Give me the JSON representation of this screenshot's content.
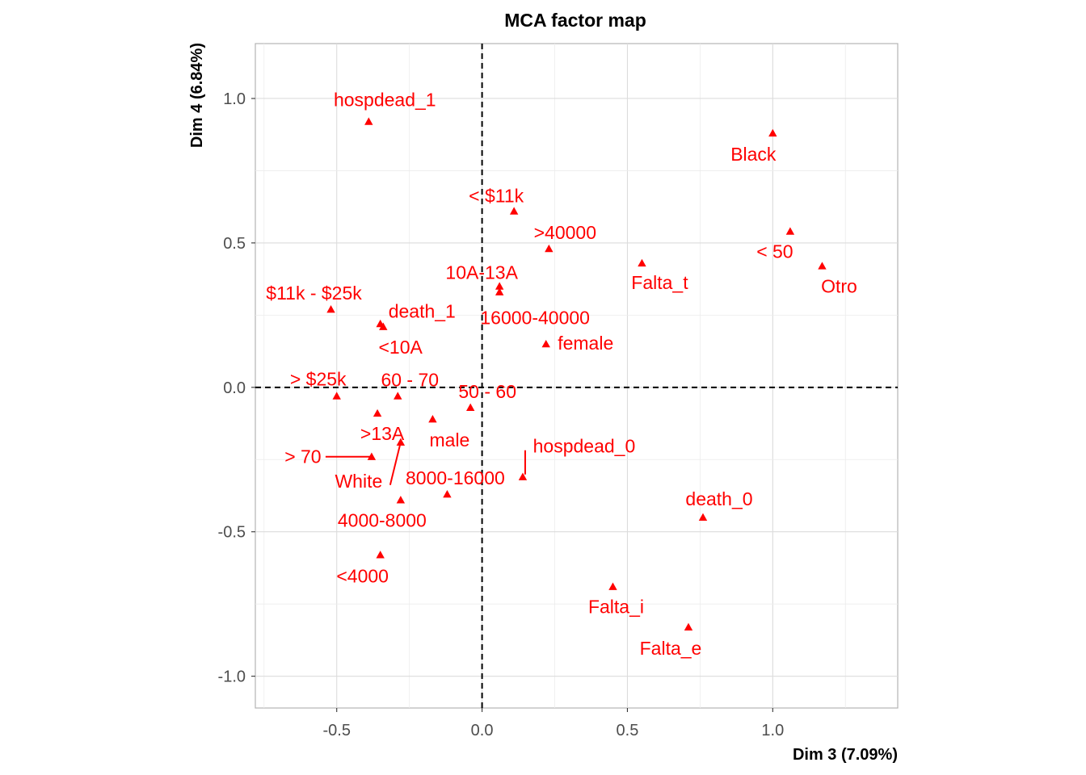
{
  "chart_data": {
    "type": "scatter",
    "title": "MCA factor map",
    "xlabel": "Dim 3 (7.09%)",
    "ylabel": "Dim 4 (6.84%)",
    "xlim": [
      -0.78,
      1.43
    ],
    "ylim": [
      -1.11,
      1.19
    ],
    "xticks": [
      -0.5,
      0.0,
      0.5,
      1.0
    ],
    "yticks": [
      -1.0,
      -0.5,
      0.0,
      0.5,
      1.0
    ],
    "xtick_labels": [
      "-0.5",
      "0.0",
      "0.5",
      "1.0"
    ],
    "ytick_labels": [
      "-1.0",
      "-0.5",
      "0.0",
      "0.5",
      "1.0"
    ],
    "grid": true,
    "reference_lines": {
      "x": 0,
      "y": 0,
      "style": "dashed"
    },
    "point_color": "#ff0000",
    "marker": "triangle",
    "points": [
      {
        "label": "hospdead_1",
        "x": -0.39,
        "y": 0.92
      },
      {
        "label": "Black",
        "x": 1.0,
        "y": 0.88
      },
      {
        "label": "< $11k",
        "x": 0.11,
        "y": 0.61
      },
      {
        "label": ">40000",
        "x": 0.23,
        "y": 0.48
      },
      {
        "label": "< 50",
        "x": 1.06,
        "y": 0.54
      },
      {
        "label": "Otro",
        "x": 1.17,
        "y": 0.42
      },
      {
        "label": "Falta_t",
        "x": 0.55,
        "y": 0.43
      },
      {
        "label": "10A-13A",
        "x": 0.06,
        "y": 0.35
      },
      {
        "label": "16000-40000",
        "x": 0.06,
        "y": 0.33
      },
      {
        "label": "$11k - $25k",
        "x": -0.52,
        "y": 0.27
      },
      {
        "label": "death_1",
        "x": -0.34,
        "y": 0.21
      },
      {
        "label": "<10A",
        "x": -0.35,
        "y": 0.22
      },
      {
        "label": "female",
        "x": 0.22,
        "y": 0.15
      },
      {
        "label": "> $25k",
        "x": -0.5,
        "y": -0.03
      },
      {
        "label": "60 - 70",
        "x": -0.29,
        "y": -0.03
      },
      {
        "label": "50 - 60",
        "x": -0.04,
        "y": -0.07
      },
      {
        "label": ">13A",
        "x": -0.36,
        "y": -0.09
      },
      {
        "label": "male",
        "x": -0.17,
        "y": -0.11
      },
      {
        "label": "> 70",
        "x": -0.38,
        "y": -0.24
      },
      {
        "label": "White",
        "x": -0.28,
        "y": -0.19
      },
      {
        "label": "hospdead_0",
        "x": 0.14,
        "y": -0.31
      },
      {
        "label": "8000-16000",
        "x": -0.12,
        "y": -0.37
      },
      {
        "label": "4000-8000",
        "x": -0.28,
        "y": -0.39
      },
      {
        "label": "<4000",
        "x": -0.35,
        "y": -0.58
      },
      {
        "label": "death_0",
        "x": 0.76,
        "y": -0.45
      },
      {
        "label": "Falta_i",
        "x": 0.45,
        "y": -0.69
      },
      {
        "label": "Falta_e",
        "x": 0.71,
        "y": -0.83
      }
    ]
  }
}
